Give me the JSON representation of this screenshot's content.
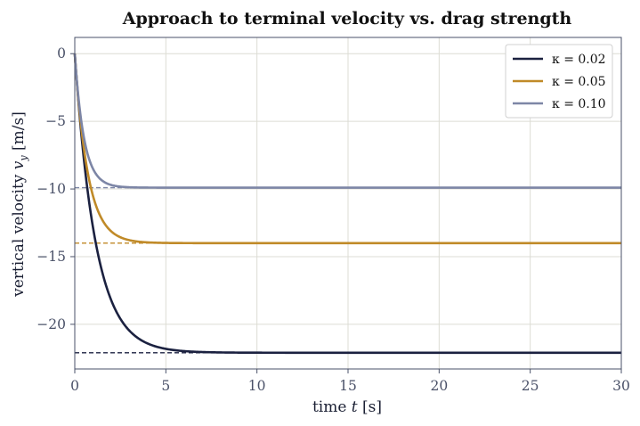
{
  "chart_data": {
    "type": "line",
    "title": "Approach to terminal velocity vs. drag strength",
    "xlabel": "time  t  [s]",
    "ylabel": "vertical velocity  v_y  [m/s]",
    "xlim": [
      0,
      30
    ],
    "ylim": [
      -23.3,
      1.2
    ],
    "xticks": [
      0,
      5,
      10,
      15,
      20,
      25,
      30
    ],
    "yticks": [
      0,
      -5,
      -10,
      -15,
      -20
    ],
    "xtick_labels": [
      "0",
      "5",
      "10",
      "15",
      "20",
      "25",
      "30"
    ],
    "ytick_labels": [
      "0",
      "−5",
      "−10",
      "−15",
      "−20"
    ],
    "grid": true,
    "legend_position": "top-right",
    "series": [
      {
        "name": "κ = 0.02",
        "color": "#1b2140",
        "terminal_velocity": -22.1,
        "time_constant": 1.15
      },
      {
        "name": "κ = 0.05",
        "color": "#c08a28",
        "terminal_velocity": -14.0,
        "time_constant": 0.72
      },
      {
        "name": "κ = 0.10",
        "color": "#7d86a6",
        "terminal_velocity": -9.9,
        "time_constant": 0.51
      }
    ],
    "annotations": [
      {
        "type": "dashed-hline",
        "y": -22.1,
        "x_range": [
          0,
          7.5
        ],
        "color": "#1b2140"
      },
      {
        "type": "dashed-hline",
        "y": -14.0,
        "x_range": [
          0,
          7.5
        ],
        "color": "#c08a28"
      },
      {
        "type": "dashed-hline",
        "y": -9.9,
        "x_range": [
          0,
          7.5
        ],
        "color": "#7d86a6"
      }
    ]
  }
}
